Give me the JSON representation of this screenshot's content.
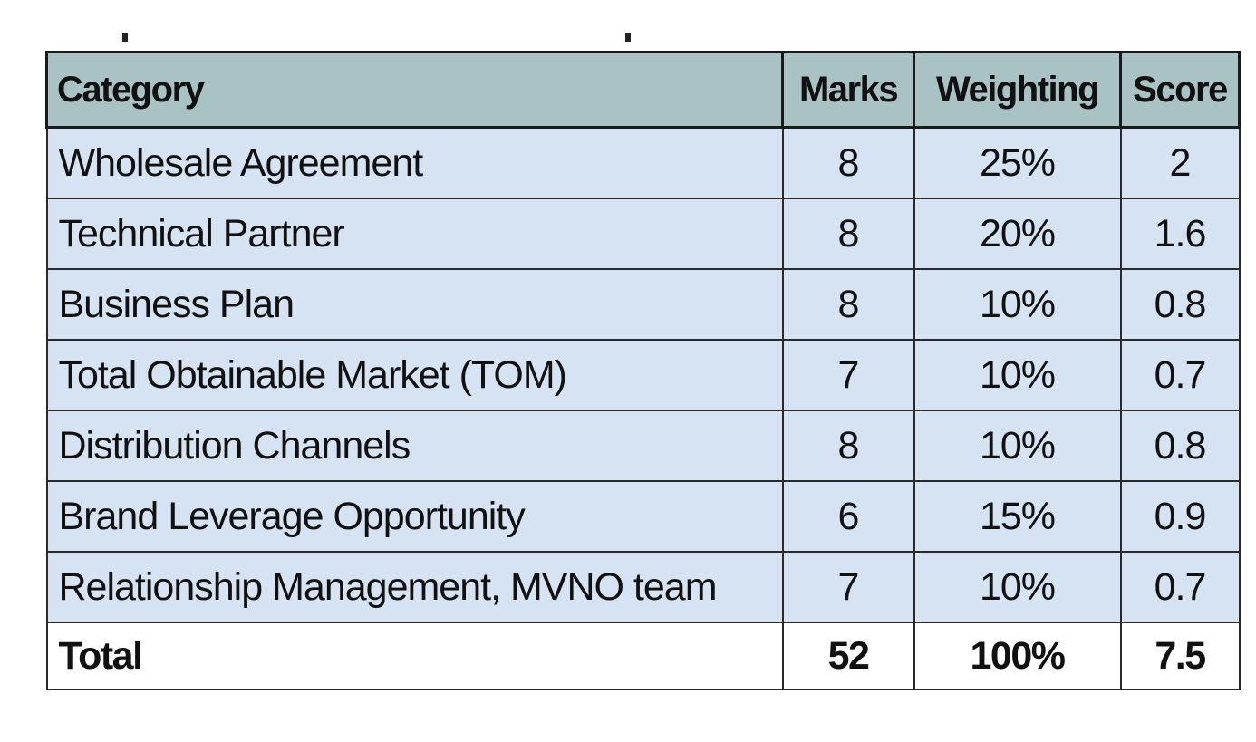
{
  "table": {
    "headers": {
      "category": "Category",
      "marks": "Marks",
      "weighting": "Weighting",
      "score": "Score"
    },
    "rows": [
      {
        "category": "Wholesale Agreement",
        "marks": "8",
        "weighting": "25%",
        "score": "2"
      },
      {
        "category": "Technical Partner",
        "marks": "8",
        "weighting": "20%",
        "score": "1.6"
      },
      {
        "category": "Business Plan",
        "marks": "8",
        "weighting": "10%",
        "score": "0.8"
      },
      {
        "category": "Total Obtainable Market (TOM)",
        "marks": "7",
        "weighting": "10%",
        "score": "0.7"
      },
      {
        "category": "Distribution Channels",
        "marks": "8",
        "weighting": "10%",
        "score": "0.8"
      },
      {
        "category": "Brand Leverage Opportunity",
        "marks": "6",
        "weighting": "15%",
        "score": "0.9"
      },
      {
        "category": "Relationship Management, MVNO team",
        "marks": "7",
        "weighting": "10%",
        "score": "0.7"
      }
    ],
    "total": {
      "category": "Total",
      "marks": "52",
      "weighting": "100%",
      "score": "7.5"
    }
  },
  "colors": {
    "header_bg": "#a9c2c4",
    "row_bg": "#d6e3f2",
    "total_bg": "#ffffff",
    "border": "#2a2a2a"
  }
}
